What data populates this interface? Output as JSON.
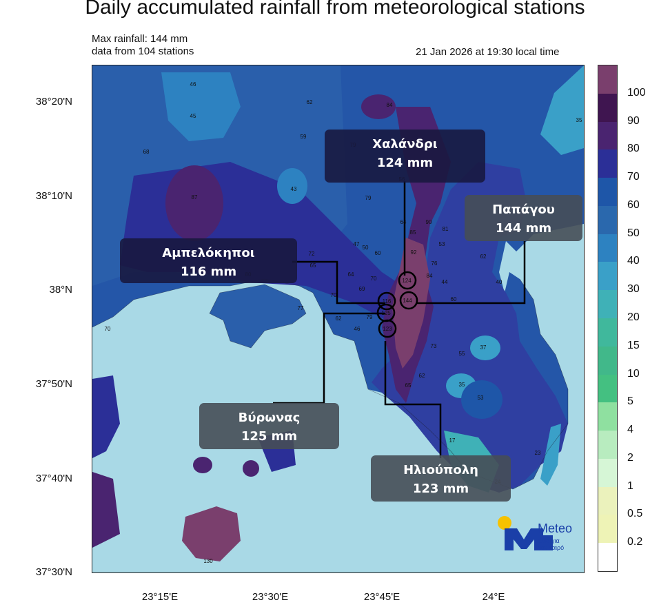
{
  "title": "Daily accumulated rainfall from meteorological stations",
  "max_rainfall": "Max rainfall: 144 mm",
  "station_count": "data from 104 stations",
  "timestamp": "21 Jan 2026 at 19:30 local time",
  "lat_labels": [
    "38°20'N",
    "38°10'N",
    "38°N",
    "37°50'N",
    "37°40'N",
    "37°30'N"
  ],
  "lon_labels": [
    "23°15'E",
    "23°30'E",
    "23°45'E",
    "24°E"
  ],
  "colorbar": {
    "labels": [
      "100",
      "90",
      "80",
      "70",
      "60",
      "50",
      "40",
      "30",
      "20",
      "15",
      "10",
      "5",
      "4",
      "2",
      "1",
      "0.5",
      "0.2"
    ],
    "colors": [
      "#7a3f6d",
      "#3f1550",
      "#4a2470",
      "#2b2f97",
      "#1e56a8",
      "#2a68ad",
      "#2d82c1",
      "#3aa0c8",
      "#3fb1b7",
      "#40b89c",
      "#41b88a",
      "#44c081",
      "#8fe0a0",
      "#b8ecbf",
      "#d6f6d6",
      "#ebf2bc",
      "#eef3b6",
      "#ffffff"
    ]
  },
  "callouts": [
    {
      "name": "Χαλάνδρι",
      "value": "124 mm"
    },
    {
      "name": "Παπάγου",
      "value": "144 mm"
    },
    {
      "name": "Αμπελόκηποι",
      "value": "116 mm"
    },
    {
      "name": "Βύρωνας",
      "value": "125 mm"
    },
    {
      "name": "Ηλιούπολη",
      "value": "123 mm"
    }
  ],
  "station_values": [
    "46",
    "45",
    "62",
    "84",
    "35",
    "68",
    "59",
    "79",
    "56",
    "43",
    "87",
    "79",
    "64",
    "90",
    "81",
    "47",
    "50",
    "60",
    "85",
    "53",
    "72",
    "65",
    "92",
    "76",
    "62",
    "80",
    "64",
    "70",
    "124",
    "84",
    "44",
    "40",
    "69",
    "116",
    "144",
    "70",
    "60",
    "77",
    "125",
    "62",
    "79",
    "46",
    "123",
    "73",
    "55",
    "37",
    "70",
    "62",
    "65",
    "35",
    "53",
    "17",
    "23",
    "24",
    "130"
  ],
  "circled_values": [
    "124",
    "116",
    "144",
    "125",
    "123"
  ],
  "brand": {
    "name": "Meteo",
    "slogan_line1": "Όλα για",
    "slogan_line2": "τον καιρό"
  }
}
